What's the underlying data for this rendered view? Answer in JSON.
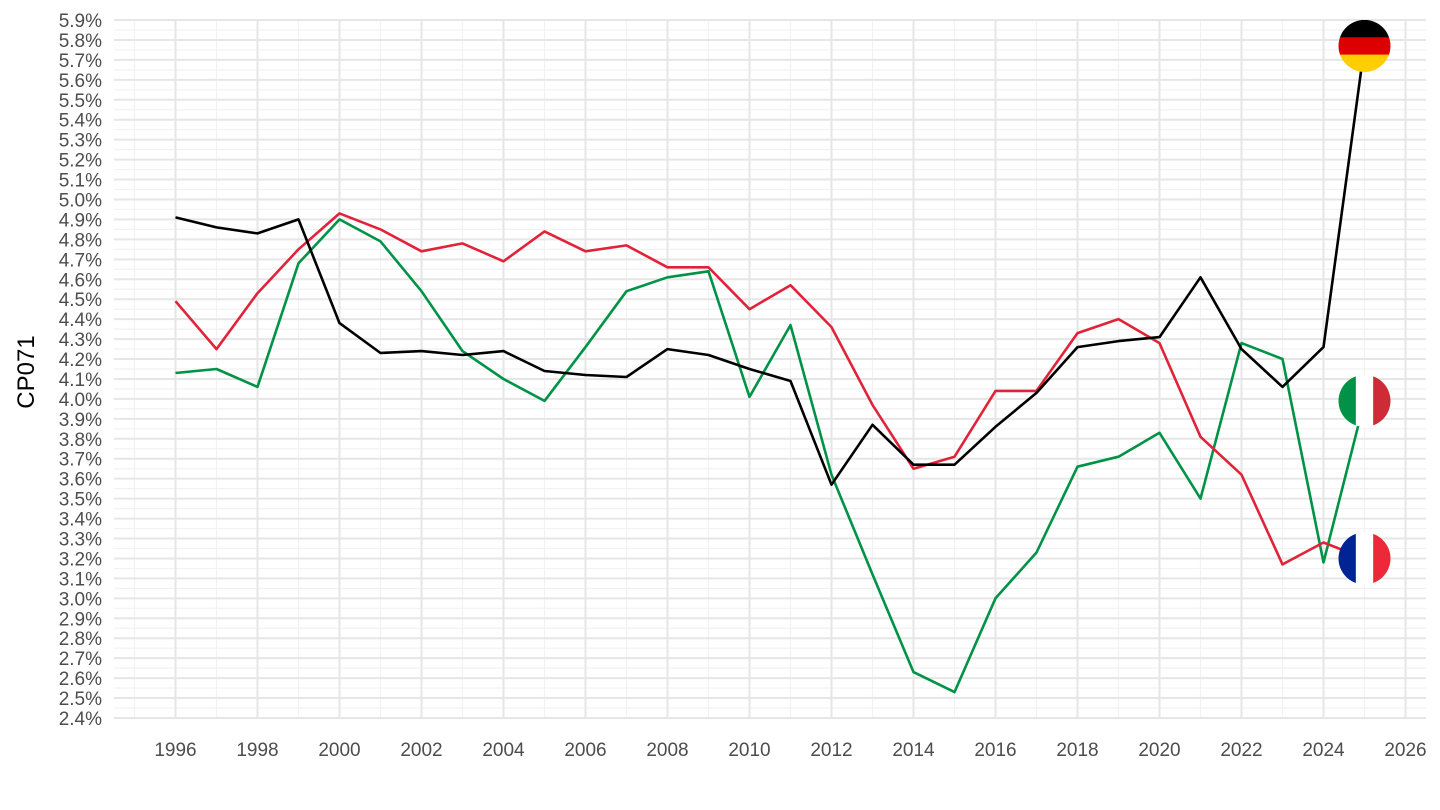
{
  "chart_data": {
    "type": "line",
    "title": "",
    "xlabel": "",
    "ylabel": "CP071",
    "xlim": [
      1994.5,
      2026.5
    ],
    "ylim": [
      2.4,
      5.9
    ],
    "x_ticks": [
      1996,
      1998,
      2000,
      2002,
      2004,
      2006,
      2008,
      2010,
      2012,
      2014,
      2016,
      2018,
      2020,
      2022,
      2024,
      2026
    ],
    "y_ticks": [
      2.4,
      2.5,
      2.6,
      2.7,
      2.8,
      2.9,
      3.0,
      3.1,
      3.2,
      3.3,
      3.4,
      3.5,
      3.6,
      3.7,
      3.8,
      3.9,
      4.0,
      4.1,
      4.2,
      4.3,
      4.4,
      4.5,
      4.6,
      4.7,
      4.8,
      4.9,
      5.0,
      5.1,
      5.2,
      5.3,
      5.4,
      5.5,
      5.6,
      5.7,
      5.8,
      5.9
    ],
    "y_tick_labels": [
      "2.4%",
      "2.5%",
      "2.6%",
      "2.7%",
      "2.8%",
      "2.9%",
      "3.0%",
      "3.1%",
      "3.2%",
      "3.3%",
      "3.4%",
      "3.5%",
      "3.6%",
      "3.7%",
      "3.8%",
      "3.9%",
      "4.0%",
      "4.1%",
      "4.2%",
      "4.3%",
      "4.4%",
      "4.5%",
      "4.6%",
      "4.7%",
      "4.8%",
      "4.9%",
      "5.0%",
      "5.1%",
      "5.2%",
      "5.3%",
      "5.4%",
      "5.5%",
      "5.6%",
      "5.7%",
      "5.8%",
      "5.9%"
    ],
    "grid": true,
    "legend": "flag icons at line ends",
    "series": [
      {
        "color": "#000000",
        "flag": "germany-flag-icon",
        "x": [
          1996,
          1997,
          1998,
          1999,
          2000,
          2001,
          2002,
          2003,
          2004,
          2005,
          2006,
          2007,
          2008,
          2009,
          2010,
          2011,
          2012,
          2013,
          2014,
          2015,
          2016,
          2017,
          2018,
          2019,
          2020,
          2021,
          2022,
          2023,
          2024,
          2025
        ],
        "values": [
          4.91,
          4.86,
          4.83,
          4.9,
          4.38,
          4.23,
          4.24,
          4.22,
          4.24,
          4.14,
          4.12,
          4.11,
          4.25,
          4.22,
          4.15,
          4.09,
          3.57,
          3.87,
          3.67,
          3.67,
          3.86,
          4.03,
          4.26,
          4.29,
          4.31,
          4.61,
          4.25,
          4.06,
          4.26,
          5.77
        ]
      },
      {
        "color": "#E1233A",
        "flag": "france-flag-icon",
        "x": [
          1996,
          1997,
          1998,
          1999,
          2000,
          2001,
          2002,
          2003,
          2004,
          2005,
          2006,
          2007,
          2008,
          2009,
          2010,
          2011,
          2012,
          2013,
          2014,
          2015,
          2016,
          2017,
          2018,
          2019,
          2020,
          2021,
          2022,
          2023,
          2024,
          2025
        ],
        "values": [
          4.49,
          4.25,
          4.53,
          4.75,
          4.93,
          4.85,
          4.74,
          4.78,
          4.69,
          4.84,
          4.74,
          4.77,
          4.66,
          4.66,
          4.45,
          4.57,
          4.36,
          3.97,
          3.65,
          3.71,
          4.04,
          4.04,
          4.33,
          4.4,
          4.28,
          3.81,
          3.62,
          3.17,
          3.28,
          3.2
        ]
      },
      {
        "color": "#009246",
        "flag": "italy-flag-icon",
        "x": [
          1996,
          1997,
          1998,
          1999,
          2000,
          2001,
          2002,
          2003,
          2004,
          2005,
          2006,
          2007,
          2008,
          2009,
          2010,
          2011,
          2012,
          2013,
          2014,
          2015,
          2016,
          2017,
          2018,
          2019,
          2020,
          2021,
          2022,
          2023,
          2024,
          2025
        ],
        "values": [
          4.13,
          4.15,
          4.06,
          4.68,
          4.9,
          4.79,
          4.54,
          4.24,
          4.1,
          3.99,
          4.26,
          4.54,
          4.61,
          4.64,
          4.01,
          4.37,
          3.62,
          3.12,
          2.63,
          2.53,
          3.0,
          3.23,
          3.66,
          3.71,
          3.83,
          3.5,
          4.28,
          4.2,
          3.18,
          3.99
        ]
      }
    ]
  }
}
